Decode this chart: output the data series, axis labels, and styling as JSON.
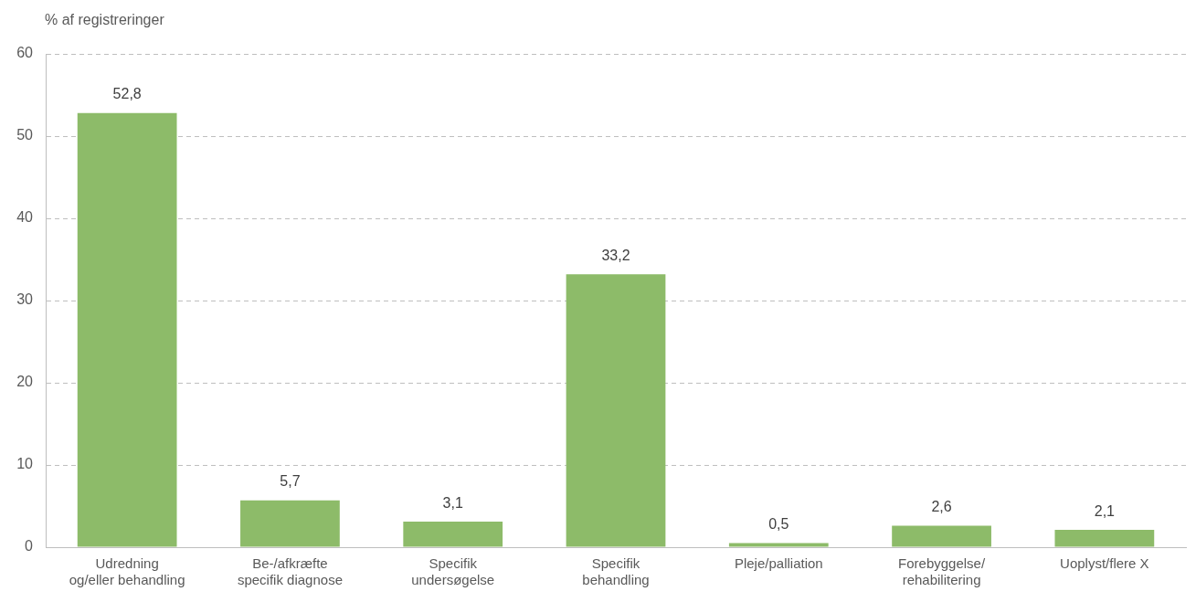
{
  "chart_data": {
    "type": "bar",
    "ylabel": "% af registreringer",
    "categories": [
      "Udredning\nog/eller behandling",
      "Be-/afkræfte\nspecifik diagnose",
      "Specifik\nundersøgelse",
      "Specifik\nbehandling",
      "Pleje/palliation",
      "Forebyggelse/\nrehabilitering",
      "Uoplyst/flere X"
    ],
    "values": [
      52.8,
      5.7,
      3.1,
      33.2,
      0.5,
      2.6,
      2.1
    ],
    "value_labels": [
      "52,8",
      "5,7",
      "3,1",
      "33,2",
      "0,5",
      "2,6",
      "2,1"
    ],
    "color": "#8dbb69",
    "ylim": [
      0,
      60
    ],
    "yticks": [
      0,
      10,
      20,
      30,
      40,
      50,
      60
    ],
    "grid": "y"
  }
}
